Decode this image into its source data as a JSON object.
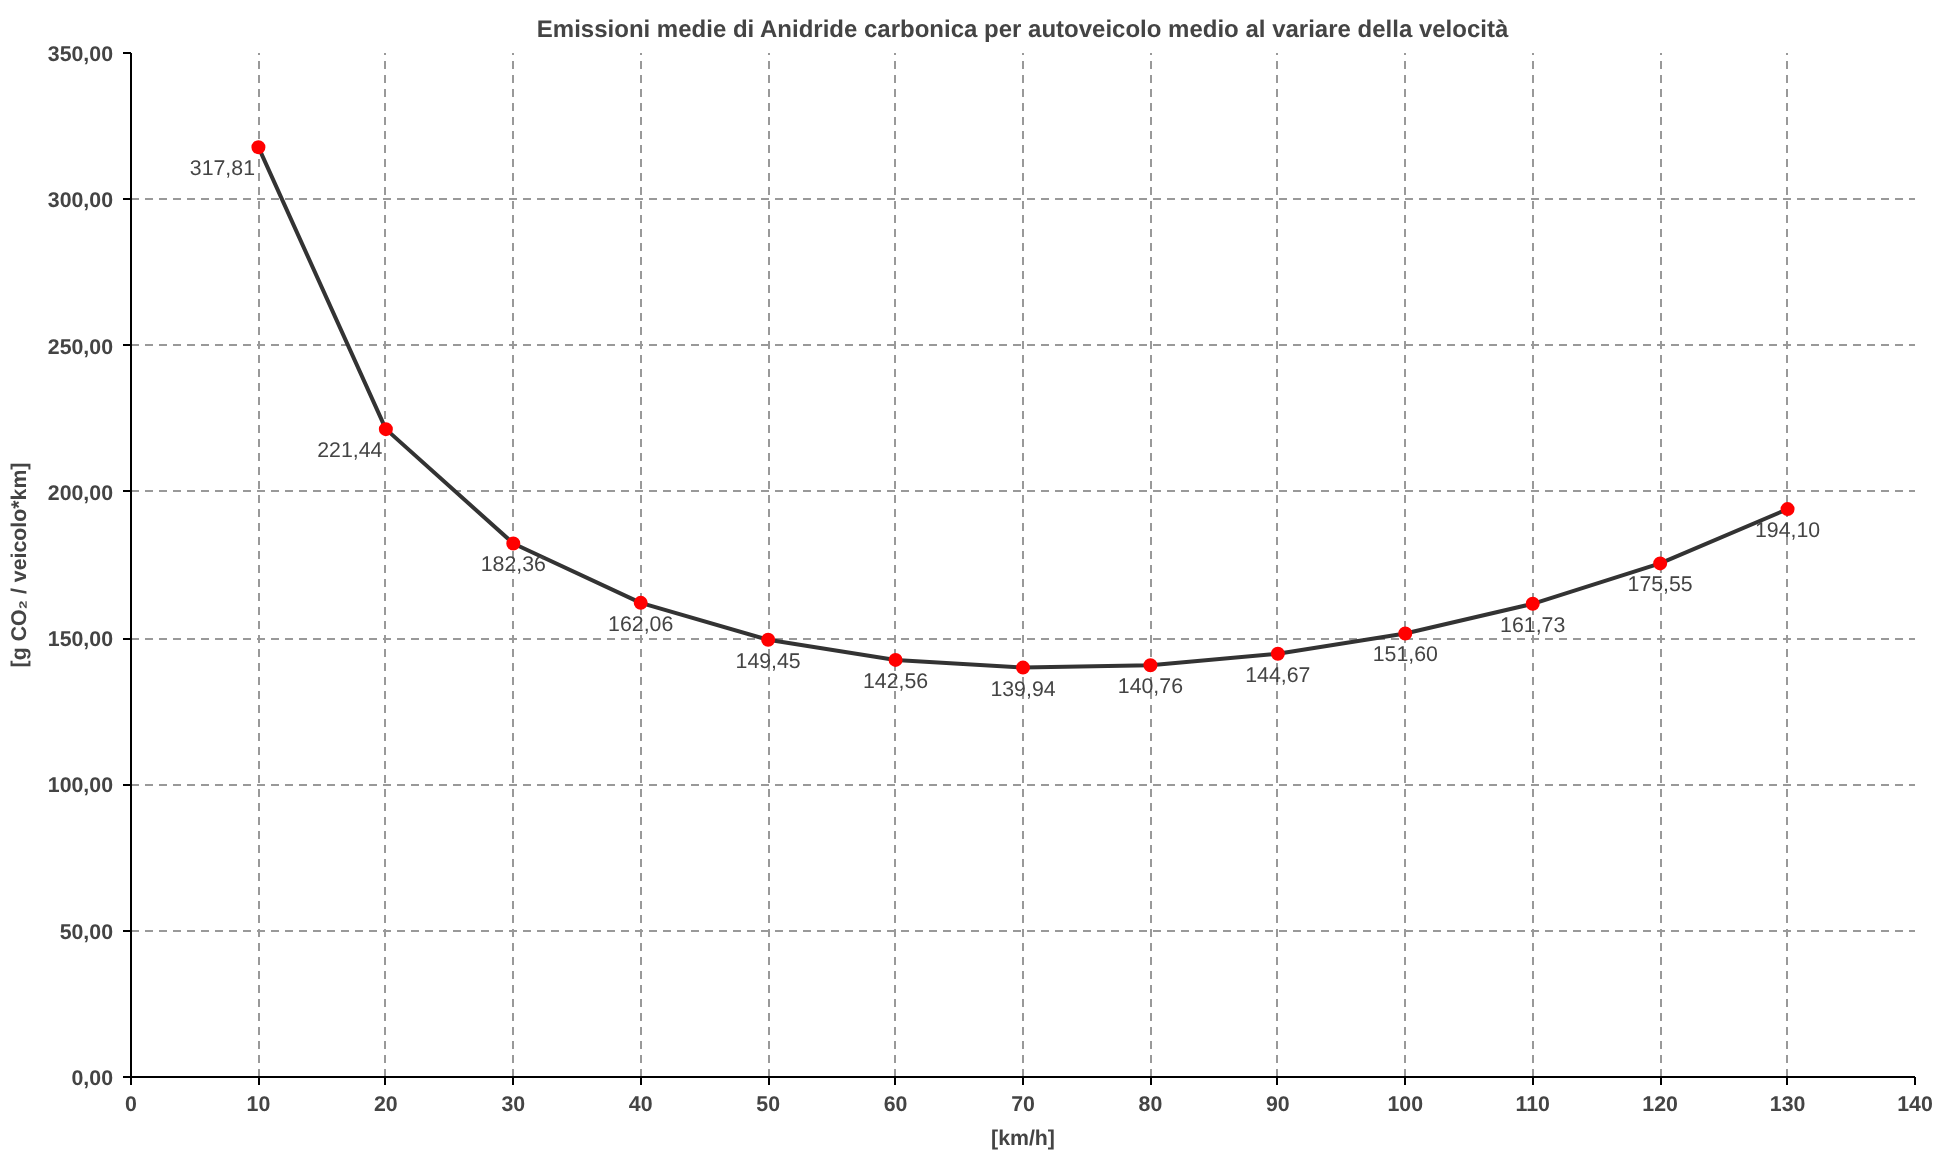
{
  "chart_data": {
    "type": "line",
    "title": "Emissioni medie di Anidride carbonica per autoveicolo medio al variare della velocità",
    "xlabel": "[km/h]",
    "ylabel": "[g CO₂ / veicolo*km]",
    "x": [
      10,
      20,
      30,
      40,
      50,
      60,
      70,
      80,
      90,
      100,
      110,
      120,
      130
    ],
    "series": [
      {
        "color": "#333333",
        "colors": [
          "#ff0000",
          "#ff0000",
          "#ff0000",
          "#ff0000",
          "#ff0000",
          "#ff0000",
          "#ff0000",
          "#ff0000",
          "#ff0000",
          "#ff0000",
          "#ff0000",
          "#ff0000",
          "#ff0000"
        ],
        "values": [
          317.81,
          221.44,
          182.36,
          162.06,
          149.45,
          142.56,
          139.94,
          140.76,
          144.67,
          151.6,
          161.73,
          175.55,
          194.1
        ],
        "value_labels": [
          "317,81",
          "221,44",
          "182,36",
          "162,06",
          "149,45",
          "142,56",
          "139,94",
          "140,76",
          "144,67",
          "151,60",
          "161,73",
          "175,55",
          "194,10"
        ]
      }
    ],
    "xlim": [
      0,
      140
    ],
    "xticks": [
      0,
      10,
      20,
      30,
      40,
      50,
      60,
      70,
      80,
      90,
      100,
      110,
      120,
      130,
      140
    ],
    "ylim": [
      0,
      350
    ],
    "yticks": [
      {
        "value": 0,
        "label": "0,00"
      },
      {
        "value": 50,
        "label": "50,00"
      },
      {
        "value": 100,
        "label": "100,00"
      },
      {
        "value": 150,
        "label": "150,00"
      },
      {
        "value": 200,
        "label": "200,00"
      },
      {
        "value": 250,
        "label": "250,00"
      },
      {
        "value": 300,
        "label": "300,00"
      },
      {
        "value": 350,
        "label": "350,00"
      }
    ],
    "grid": true,
    "marker": "circle",
    "line_style": "solid"
  }
}
